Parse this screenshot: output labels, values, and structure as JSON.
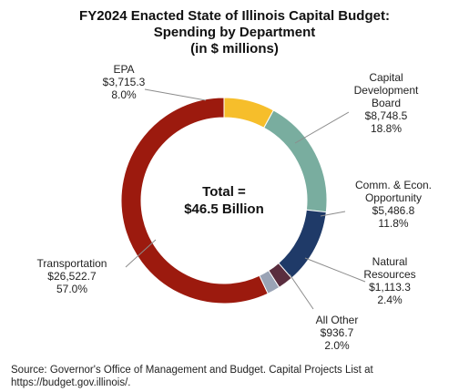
{
  "title": {
    "line1": "FY2024 Enacted State of Illinois Capital Budget:",
    "line2": "Spending by Department",
    "line3": "(in $ millions)"
  },
  "center_label": {
    "line1": "Total =",
    "line2": "$46.5 Billion"
  },
  "source": "Source: Governor's Office of Management and Budget. Capital Projects List at https://budget.gov.illinois/.",
  "chart_data": {
    "type": "pie",
    "variant": "donut",
    "title": "FY2024 Enacted State of Illinois Capital Budget: Spending by Department (in $ millions)",
    "total_label": "Total = $46.5 Billion",
    "start_angle_deg": 0,
    "slices": [
      {
        "name": "EPA",
        "value": 3715.3,
        "value_label": "$3,715.3",
        "percent_label": "8.0%",
        "color": "#F6BE2B"
      },
      {
        "name": "Capital Development Board",
        "value": 8748.5,
        "value_label": "$8,748.5",
        "percent_label": "18.8%",
        "color": "#79AD9F"
      },
      {
        "name": "Comm. & Econ. Opportunity",
        "value": 5486.8,
        "value_label": "$5,486.8",
        "percent_label": "11.8%",
        "color": "#1F3A68"
      },
      {
        "name": "Natural Resources",
        "value": 1113.3,
        "value_label": "$1,113.3",
        "percent_label": "2.4%",
        "color": "#5A2D3E"
      },
      {
        "name": "All Other",
        "value": 936.7,
        "value_label": "$936.7",
        "percent_label": "2.0%",
        "color": "#9AA3B5"
      },
      {
        "name": "Transportation",
        "value": 26522.7,
        "value_label": "$26,522.7",
        "percent_label": "57.0%",
        "color": "#9C1A0E"
      }
    ]
  }
}
